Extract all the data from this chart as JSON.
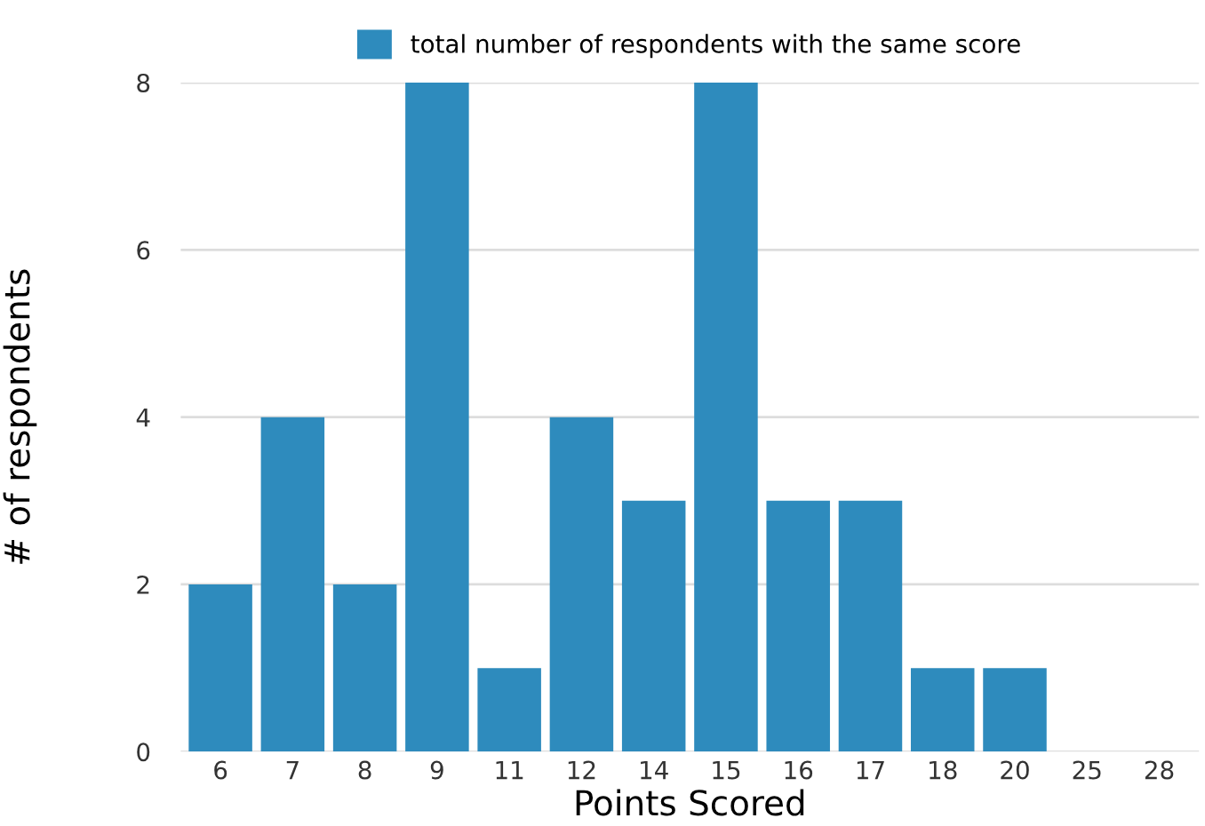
{
  "chart_data": {
    "type": "bar",
    "categories": [
      "6",
      "7",
      "8",
      "9",
      "11",
      "12",
      "14",
      "15",
      "16",
      "17",
      "18",
      "20",
      "25",
      "28"
    ],
    "series": [
      {
        "name": "total number of respondents with the same score",
        "color": "#2e8bbd",
        "values": [
          2,
          4,
          2,
          8,
          1,
          4,
          3,
          8,
          3,
          3,
          1,
          1,
          0,
          0
        ]
      }
    ],
    "xlabel": "Points Scored",
    "ylabel": "# of respondents",
    "ylim": [
      0,
      8
    ],
    "yticks": [
      0,
      2,
      4,
      6,
      8
    ],
    "grid": "y",
    "legend": "top"
  }
}
